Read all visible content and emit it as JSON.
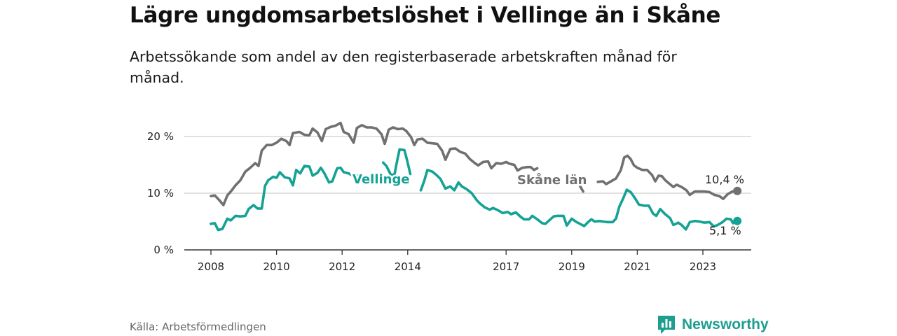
{
  "title": "Lägre ungdomsarbetslöshet i Vellinge än i Skåne",
  "subtitle": "Arbetssökande som andel av den registerbaserade arbetskraften månad för månad.",
  "source": "Källa: Arbetsförmedlingen",
  "brand": "Newsworthy",
  "colors": {
    "skane": "#707070",
    "vellinge": "#14a294",
    "grid": "#cfcfcf",
    "axis": "#333333",
    "brand": "#1e9e8f"
  },
  "chart_data": {
    "type": "line",
    "title": "Lägre ungdomsarbetslöshet i Vellinge än i Skåne",
    "ylabel": "",
    "xlabel": "",
    "xlim": [
      2007.8,
      2024.5
    ],
    "ylim": [
      0,
      25
    ],
    "y_ticks": [
      0,
      10,
      20
    ],
    "y_tick_labels": [
      "0 %",
      "10 %",
      "20 %"
    ],
    "x_ticks": [
      2008,
      2010,
      2012,
      2014,
      2017,
      2019,
      2021,
      2023
    ],
    "x_tick_labels": [
      "2008",
      "2010",
      "2012",
      "2014",
      "2017",
      "2019",
      "2021",
      "2023"
    ],
    "series": [
      {
        "name": "Skåne län",
        "label": "Skåne län",
        "end_label": "10,4 %",
        "points": [
          [
            2008.0,
            9.5
          ],
          [
            2008.12,
            9.6
          ],
          [
            2008.25,
            8.8
          ],
          [
            2008.38,
            7.9
          ],
          [
            2008.5,
            9.6
          ],
          [
            2008.62,
            10.4
          ],
          [
            2008.75,
            11.4
          ],
          [
            2008.9,
            12.3
          ],
          [
            2009.05,
            13.8
          ],
          [
            2009.2,
            14.5
          ],
          [
            2009.35,
            15.3
          ],
          [
            2009.45,
            14.8
          ],
          [
            2009.55,
            17.5
          ],
          [
            2009.7,
            18.5
          ],
          [
            2009.85,
            18.5
          ],
          [
            2010.0,
            18.9
          ],
          [
            2010.15,
            19.6
          ],
          [
            2010.3,
            19.2
          ],
          [
            2010.4,
            18.5
          ],
          [
            2010.5,
            20.6
          ],
          [
            2010.7,
            20.8
          ],
          [
            2010.85,
            20.3
          ],
          [
            2011.0,
            20.2
          ],
          [
            2011.1,
            21.4
          ],
          [
            2011.25,
            20.7
          ],
          [
            2011.38,
            19.2
          ],
          [
            2011.5,
            21.3
          ],
          [
            2011.65,
            21.7
          ],
          [
            2011.8,
            21.9
          ],
          [
            2011.95,
            22.4
          ],
          [
            2012.05,
            20.8
          ],
          [
            2012.2,
            20.4
          ],
          [
            2012.35,
            18.9
          ],
          [
            2012.45,
            21.5
          ],
          [
            2012.6,
            22.0
          ],
          [
            2012.75,
            21.6
          ],
          [
            2012.9,
            21.6
          ],
          [
            2013.05,
            21.4
          ],
          [
            2013.2,
            20.4
          ],
          [
            2013.3,
            18.7
          ],
          [
            2013.42,
            21.2
          ],
          [
            2013.55,
            21.6
          ],
          [
            2013.7,
            21.3
          ],
          [
            2013.85,
            21.4
          ],
          [
            2013.95,
            21.0
          ],
          [
            2014.1,
            19.9
          ],
          [
            2014.2,
            18.5
          ],
          [
            2014.3,
            19.5
          ],
          [
            2014.45,
            19.6
          ],
          [
            2014.6,
            18.9
          ],
          [
            2014.75,
            18.8
          ],
          [
            2014.9,
            18.7
          ],
          [
            2015.05,
            17.5
          ],
          [
            2015.15,
            15.9
          ],
          [
            2015.3,
            17.8
          ],
          [
            2015.45,
            17.9
          ],
          [
            2015.6,
            17.3
          ],
          [
            2015.75,
            17.0
          ],
          [
            2015.9,
            16.0
          ],
          [
            2016.05,
            15.3
          ],
          [
            2016.15,
            14.9
          ],
          [
            2016.3,
            15.5
          ],
          [
            2016.45,
            15.6
          ],
          [
            2016.55,
            14.4
          ],
          [
            2016.7,
            15.3
          ],
          [
            2016.85,
            15.2
          ],
          [
            2017.0,
            15.5
          ],
          [
            2017.1,
            15.2
          ],
          [
            2017.25,
            15.0
          ],
          [
            2017.35,
            14.0
          ],
          [
            2017.5,
            14.5
          ],
          [
            2017.65,
            14.6
          ],
          [
            2017.75,
            14.6
          ],
          [
            2017.85,
            14.1
          ],
          [
            2017.95,
            14.4
          ],
          [
            2019.1,
            12.1
          ],
          [
            2019.2,
            11.8
          ],
          [
            2019.3,
            10.8
          ],
          [
            2019.35,
            10.3
          ],
          [
            2019.8,
            12.0
          ],
          [
            2019.95,
            12.1
          ],
          [
            2020.05,
            11.6
          ],
          [
            2020.2,
            12.1
          ],
          [
            2020.35,
            12.6
          ],
          [
            2020.5,
            14.1
          ],
          [
            2020.6,
            16.3
          ],
          [
            2020.7,
            16.6
          ],
          [
            2020.8,
            16.0
          ],
          [
            2020.9,
            14.9
          ],
          [
            2021.0,
            14.5
          ],
          [
            2021.15,
            14.1
          ],
          [
            2021.3,
            14.1
          ],
          [
            2021.45,
            13.2
          ],
          [
            2021.55,
            12.1
          ],
          [
            2021.65,
            13.1
          ],
          [
            2021.75,
            13.0
          ],
          [
            2021.85,
            12.3
          ],
          [
            2021.95,
            11.8
          ],
          [
            2022.1,
            11.1
          ],
          [
            2022.2,
            11.5
          ],
          [
            2022.35,
            11.1
          ],
          [
            2022.5,
            10.5
          ],
          [
            2022.6,
            9.7
          ],
          [
            2022.75,
            10.3
          ],
          [
            2022.9,
            10.3
          ],
          [
            2023.05,
            10.3
          ],
          [
            2023.2,
            10.2
          ],
          [
            2023.35,
            9.7
          ],
          [
            2023.5,
            9.5
          ],
          [
            2023.62,
            9.0
          ],
          [
            2023.75,
            9.8
          ],
          [
            2023.9,
            10.3
          ],
          [
            2024.05,
            10.4
          ]
        ]
      },
      {
        "name": "Vellinge",
        "label": "Vellinge",
        "end_label": "5,1 %",
        "points": [
          [
            2008.0,
            4.6
          ],
          [
            2008.12,
            4.7
          ],
          [
            2008.22,
            3.5
          ],
          [
            2008.35,
            3.7
          ],
          [
            2008.5,
            5.5
          ],
          [
            2008.6,
            5.2
          ],
          [
            2008.75,
            6.0
          ],
          [
            2008.9,
            5.9
          ],
          [
            2009.05,
            6.0
          ],
          [
            2009.15,
            7.2
          ],
          [
            2009.3,
            7.9
          ],
          [
            2009.42,
            7.3
          ],
          [
            2009.55,
            7.3
          ],
          [
            2009.65,
            11.3
          ],
          [
            2009.75,
            12.3
          ],
          [
            2009.9,
            12.9
          ],
          [
            2010.0,
            12.7
          ],
          [
            2010.1,
            13.7
          ],
          [
            2010.25,
            12.8
          ],
          [
            2010.4,
            12.6
          ],
          [
            2010.5,
            11.4
          ],
          [
            2010.6,
            14.1
          ],
          [
            2010.72,
            13.5
          ],
          [
            2010.85,
            14.8
          ],
          [
            2011.0,
            14.7
          ],
          [
            2011.1,
            13.1
          ],
          [
            2011.25,
            13.6
          ],
          [
            2011.35,
            14.5
          ],
          [
            2011.45,
            13.6
          ],
          [
            2011.6,
            11.9
          ],
          [
            2011.7,
            12.1
          ],
          [
            2011.85,
            14.4
          ],
          [
            2011.95,
            14.5
          ],
          [
            2012.05,
            13.7
          ],
          [
            2012.2,
            13.5
          ],
          [
            2012.35,
            13.0
          ],
          [
            2012.5,
            13.1
          ],
          [
            2012.62,
            12.9
          ],
          [
            2012.72,
            13.0
          ],
          [
            2013.25,
            15.4
          ],
          [
            2013.35,
            14.8
          ],
          [
            2013.5,
            13.1
          ],
          [
            2013.6,
            13.4
          ],
          [
            2013.65,
            14.9
          ],
          [
            2013.75,
            17.7
          ],
          [
            2013.9,
            17.6
          ],
          [
            2013.98,
            15.8
          ],
          [
            2014.08,
            13.4
          ],
          [
            2014.4,
            10.5
          ],
          [
            2014.5,
            12.1
          ],
          [
            2014.6,
            14.1
          ],
          [
            2014.75,
            13.8
          ],
          [
            2014.88,
            13.2
          ],
          [
            2015.0,
            12.5
          ],
          [
            2015.15,
            10.8
          ],
          [
            2015.3,
            11.2
          ],
          [
            2015.42,
            10.5
          ],
          [
            2015.55,
            11.9
          ],
          [
            2015.65,
            11.2
          ],
          [
            2015.8,
            10.7
          ],
          [
            2015.95,
            10.0
          ],
          [
            2016.1,
            8.8
          ],
          [
            2016.2,
            8.2
          ],
          [
            2016.35,
            7.5
          ],
          [
            2016.5,
            7.1
          ],
          [
            2016.6,
            7.4
          ],
          [
            2016.75,
            7.0
          ],
          [
            2016.9,
            6.5
          ],
          [
            2017.05,
            6.7
          ],
          [
            2017.15,
            6.3
          ],
          [
            2017.3,
            6.6
          ],
          [
            2017.45,
            5.8
          ],
          [
            2017.55,
            5.4
          ],
          [
            2017.7,
            5.4
          ],
          [
            2017.8,
            6.0
          ],
          [
            2017.95,
            5.4
          ],
          [
            2018.1,
            4.7
          ],
          [
            2018.2,
            4.6
          ],
          [
            2018.35,
            5.4
          ],
          [
            2018.45,
            5.9
          ],
          [
            2018.55,
            6.0
          ],
          [
            2018.75,
            6.0
          ],
          [
            2018.85,
            4.3
          ],
          [
            2019.0,
            5.5
          ],
          [
            2019.15,
            4.9
          ],
          [
            2019.25,
            4.6
          ],
          [
            2019.38,
            4.2
          ],
          [
            2019.5,
            4.9
          ],
          [
            2019.6,
            5.4
          ],
          [
            2019.7,
            5.0
          ],
          [
            2019.85,
            5.1
          ],
          [
            2019.95,
            5.0
          ],
          [
            2020.1,
            4.9
          ],
          [
            2020.25,
            4.9
          ],
          [
            2020.35,
            5.5
          ],
          [
            2020.45,
            7.6
          ],
          [
            2020.58,
            9.2
          ],
          [
            2020.68,
            10.6
          ],
          [
            2020.8,
            10.2
          ],
          [
            2020.92,
            9.2
          ],
          [
            2021.05,
            8.0
          ],
          [
            2021.2,
            7.8
          ],
          [
            2021.35,
            7.8
          ],
          [
            2021.48,
            6.4
          ],
          [
            2021.58,
            6.0
          ],
          [
            2021.7,
            7.2
          ],
          [
            2021.85,
            6.3
          ],
          [
            2022.0,
            5.6
          ],
          [
            2022.1,
            4.4
          ],
          [
            2022.25,
            4.8
          ],
          [
            2022.35,
            4.4
          ],
          [
            2022.48,
            3.6
          ],
          [
            2022.6,
            4.9
          ],
          [
            2022.75,
            5.1
          ],
          [
            2022.9,
            5.0
          ],
          [
            2023.05,
            4.8
          ],
          [
            2023.2,
            4.9
          ],
          [
            2023.32,
            4.2
          ],
          [
            2023.42,
            4.3
          ],
          [
            2023.6,
            4.9
          ],
          [
            2023.72,
            5.5
          ],
          [
            2023.85,
            5.4
          ],
          [
            2023.92,
            4.7
          ],
          [
            2024.0,
            5.3
          ],
          [
            2024.05,
            5.1
          ]
        ]
      }
    ]
  }
}
